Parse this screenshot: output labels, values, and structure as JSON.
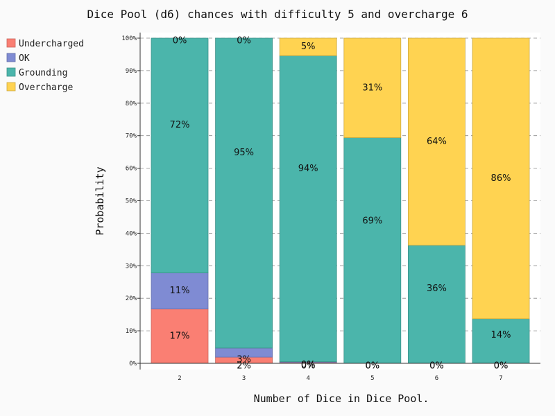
{
  "chart_data": {
    "type": "bar",
    "stacked": true,
    "title": "Dice Pool (d6) chances with difficulty 5 and overcharge 6",
    "xlabel": "Number of Dice in Dice Pool.",
    "ylabel": "Probability",
    "categories": [
      "2",
      "3",
      "4",
      "5",
      "6",
      "7"
    ],
    "ylim": [
      0,
      100
    ],
    "yticks": [
      "0%",
      "10%",
      "20%",
      "30%",
      "40%",
      "50%",
      "60%",
      "70%",
      "80%",
      "90%",
      "100%"
    ],
    "grid": "horizontal-dashed",
    "legend_position": "top-left",
    "series": [
      {
        "name": "Undercharged",
        "color": "#fa7f73",
        "values": [
          16.7,
          1.9,
          0.3,
          0.0,
          0.0,
          0.0
        ],
        "labels": [
          "17%",
          "2%",
          "0%",
          "0%",
          "0%",
          "0%"
        ]
      },
      {
        "name": "OK",
        "color": "#7f8bd3",
        "values": [
          11.1,
          2.8,
          0.2,
          0.0,
          0.0,
          0.0
        ],
        "labels": [
          "11%",
          "3%",
          "0%",
          "0%",
          "0%",
          "0%"
        ]
      },
      {
        "name": "Grounding",
        "color": "#4bb5ab",
        "values": [
          72.2,
          95.3,
          94.1,
          69.4,
          36.3,
          13.7
        ],
        "labels": [
          "72%",
          "95%",
          "94%",
          "69%",
          "36%",
          "14%"
        ]
      },
      {
        "name": "Overcharge",
        "color": "#ffd351",
        "values": [
          0.0,
          0.0,
          5.4,
          30.6,
          63.7,
          86.3
        ],
        "labels": [
          "0%",
          "0%",
          "5%",
          "31%",
          "64%",
          "86%"
        ]
      }
    ]
  }
}
